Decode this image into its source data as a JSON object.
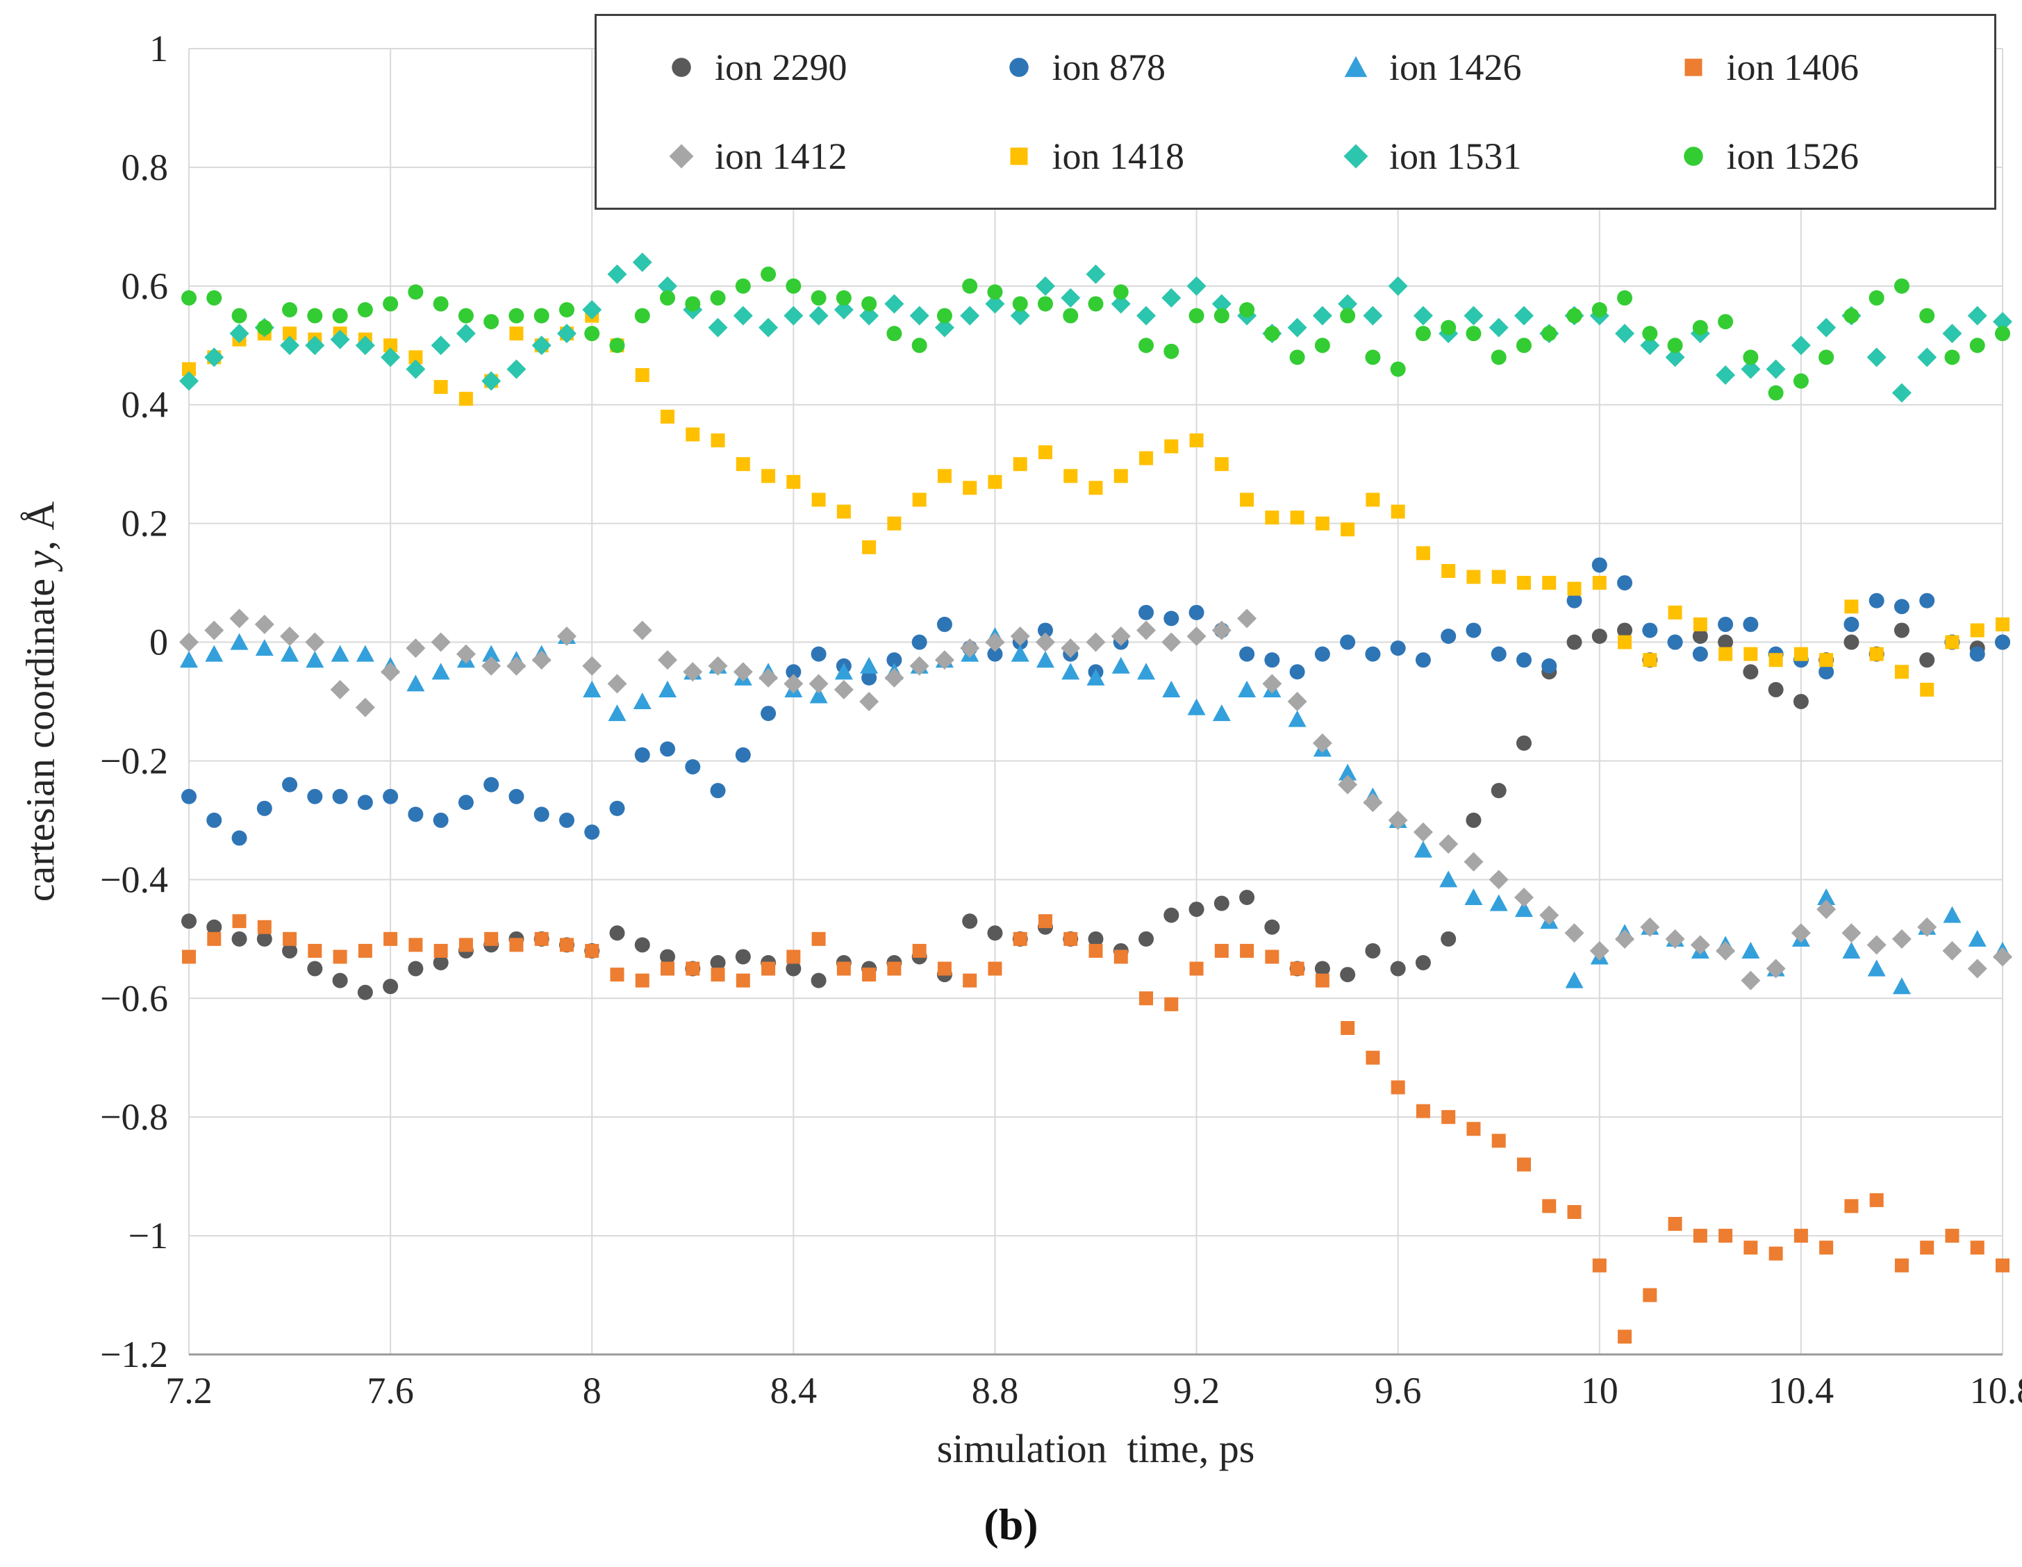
{
  "chart_data": {
    "type": "scatter",
    "title": "",
    "xlabel": "simulation  time, ps",
    "ylabel": {
      "prefix": "cartesian coordinate",
      "variable": "y",
      "suffix": ", Å"
    },
    "caption": "(b)",
    "grid": true,
    "legend_position": "top-inside",
    "x_axis": {
      "min": 7.2,
      "max": 10.8,
      "ticks": [
        7.2,
        7.6,
        8,
        8.4,
        8.8,
        9.2,
        9.6,
        10,
        10.4,
        10.8
      ],
      "tick_labels": [
        "7.2",
        "7.6",
        "8",
        "8.4",
        "8.8",
        "9.2",
        "9.6",
        "10",
        "10.4",
        "10.8"
      ]
    },
    "y_axis": {
      "min": -1.2,
      "max": 1,
      "ticks": [
        1,
        0.8,
        0.6,
        0.4,
        0.2,
        0,
        -0.2,
        -0.4,
        -0.6,
        -0.8,
        -1,
        -1.2
      ],
      "tick_labels": [
        "1",
        "0.8",
        "0.6",
        "0.4",
        "0.2",
        "0",
        "−0.2",
        "−0.4",
        "−0.6",
        "−0.8",
        "−1",
        "−1.2"
      ]
    },
    "x_start": 7.2,
    "x_step": 0.05,
    "series": [
      {
        "name": "ion 2290",
        "marker": "circle",
        "color": "#595959",
        "values": [
          -0.47,
          -0.48,
          -0.5,
          -0.5,
          -0.52,
          -0.55,
          -0.57,
          -0.59,
          -0.58,
          -0.55,
          -0.54,
          -0.52,
          -0.51,
          -0.5,
          -0.5,
          -0.51,
          -0.52,
          -0.49,
          -0.51,
          -0.53,
          -0.55,
          -0.54,
          -0.53,
          -0.54,
          -0.55,
          -0.57,
          -0.54,
          -0.55,
          -0.54,
          -0.53,
          -0.56,
          -0.47,
          -0.49,
          -0.5,
          -0.48,
          -0.5,
          -0.5,
          -0.52,
          -0.5,
          -0.46,
          -0.45,
          -0.44,
          -0.43,
          -0.48,
          -0.55,
          -0.55,
          -0.56,
          -0.52,
          -0.55,
          -0.54,
          -0.5,
          -0.3,
          -0.25,
          -0.17,
          -0.05,
          0.0,
          0.01,
          0.02,
          -0.03,
          0.0,
          0.01,
          0.0,
          -0.05,
          -0.08,
          -0.1,
          -0.03,
          0.0,
          -0.02,
          0.02,
          -0.03,
          0.0,
          -0.01,
          0.0
        ]
      },
      {
        "name": "ion 878",
        "marker": "circle",
        "color": "#2e75b6",
        "values": [
          -0.26,
          -0.3,
          -0.33,
          -0.28,
          -0.24,
          -0.26,
          -0.26,
          -0.27,
          -0.26,
          -0.29,
          -0.3,
          -0.27,
          -0.24,
          -0.26,
          -0.29,
          -0.3,
          -0.32,
          -0.28,
          -0.19,
          -0.18,
          -0.21,
          -0.25,
          -0.19,
          -0.12,
          -0.05,
          -0.02,
          -0.04,
          -0.06,
          -0.03,
          0.0,
          0.03,
          -0.01,
          -0.02,
          0.0,
          0.02,
          -0.02,
          -0.05,
          0.0,
          0.05,
          0.04,
          0.05,
          0.02,
          -0.02,
          -0.03,
          -0.05,
          -0.02,
          0.0,
          -0.02,
          -0.01,
          -0.03,
          0.01,
          0.02,
          -0.02,
          -0.03,
          -0.04,
          0.07,
          0.13,
          0.1,
          0.02,
          0.0,
          -0.02,
          0.03,
          0.03,
          -0.02,
          -0.03,
          -0.05,
          0.03,
          0.07,
          0.06,
          0.07,
          0.0,
          -0.02,
          0.0
        ]
      },
      {
        "name": "ion 1426",
        "marker": "triangle",
        "color": "#33a0dc",
        "values": [
          -0.03,
          -0.02,
          0.0,
          -0.01,
          -0.02,
          -0.03,
          -0.02,
          -0.02,
          -0.04,
          -0.07,
          -0.05,
          -0.03,
          -0.02,
          -0.03,
          -0.02,
          0.01,
          -0.08,
          -0.12,
          -0.1,
          -0.08,
          -0.05,
          -0.04,
          -0.06,
          -0.05,
          -0.08,
          -0.09,
          -0.05,
          -0.04,
          -0.05,
          -0.04,
          -0.03,
          -0.02,
          0.01,
          -0.02,
          -0.03,
          -0.05,
          -0.06,
          -0.04,
          -0.05,
          -0.08,
          -0.11,
          -0.12,
          -0.08,
          -0.08,
          -0.13,
          -0.18,
          -0.22,
          -0.26,
          -0.3,
          -0.35,
          -0.4,
          -0.43,
          -0.44,
          -0.45,
          -0.47,
          -0.57,
          -0.53,
          -0.49,
          -0.48,
          -0.5,
          -0.52,
          -0.51,
          -0.52,
          -0.55,
          -0.5,
          -0.43,
          -0.52,
          -0.55,
          -0.58,
          -0.48,
          -0.46,
          -0.5,
          -0.52
        ]
      },
      {
        "name": "ion 1406",
        "marker": "square",
        "color": "#ed7d31",
        "values": [
          -0.53,
          -0.5,
          -0.47,
          -0.48,
          -0.5,
          -0.52,
          -0.53,
          -0.52,
          -0.5,
          -0.51,
          -0.52,
          -0.51,
          -0.5,
          -0.51,
          -0.5,
          -0.51,
          -0.52,
          -0.56,
          -0.57,
          -0.55,
          -0.55,
          -0.56,
          -0.57,
          -0.55,
          -0.53,
          -0.5,
          -0.55,
          -0.56,
          -0.55,
          -0.52,
          -0.55,
          -0.57,
          -0.55,
          -0.5,
          -0.47,
          -0.5,
          -0.52,
          -0.53,
          -0.6,
          -0.61,
          -0.55,
          -0.52,
          -0.52,
          -0.53,
          -0.55,
          -0.57,
          -0.65,
          -0.7,
          -0.75,
          -0.79,
          -0.8,
          -0.82,
          -0.84,
          -0.88,
          -0.95,
          -0.96,
          -1.05,
          -1.17,
          -1.1,
          -0.98,
          -1.0,
          -1.0,
          -1.02,
          -1.03,
          -1.0,
          -1.02,
          -0.95,
          -0.94,
          -1.05,
          -1.02,
          -1.0,
          -1.02,
          -1.05
        ]
      },
      {
        "name": "ion 1412",
        "marker": "diamond",
        "color": "#a6a6a6",
        "values": [
          0.0,
          0.02,
          0.04,
          0.03,
          0.01,
          0.0,
          -0.08,
          -0.11,
          -0.05,
          -0.01,
          0.0,
          -0.02,
          -0.04,
          -0.04,
          -0.03,
          0.01,
          -0.04,
          -0.07,
          0.02,
          -0.03,
          -0.05,
          -0.04,
          -0.05,
          -0.06,
          -0.07,
          -0.07,
          -0.08,
          -0.1,
          -0.06,
          -0.04,
          -0.03,
          -0.01,
          0.0,
          0.01,
          0.0,
          -0.01,
          0.0,
          0.01,
          0.02,
          0.0,
          0.01,
          0.02,
          0.04,
          -0.07,
          -0.1,
          -0.17,
          -0.24,
          -0.27,
          -0.3,
          -0.32,
          -0.34,
          -0.37,
          -0.4,
          -0.43,
          -0.46,
          -0.49,
          -0.52,
          -0.5,
          -0.48,
          -0.5,
          -0.51,
          -0.52,
          -0.57,
          -0.55,
          -0.49,
          -0.45,
          -0.49,
          -0.51,
          -0.5,
          -0.48,
          -0.52,
          -0.55,
          -0.53
        ]
      },
      {
        "name": "ion 1418",
        "marker": "square",
        "color": "#ffc000",
        "values": [
          0.46,
          0.48,
          0.51,
          0.52,
          0.52,
          0.51,
          0.52,
          0.51,
          0.5,
          0.48,
          0.43,
          0.41,
          0.44,
          0.52,
          0.5,
          0.52,
          0.55,
          0.5,
          0.45,
          0.38,
          0.35,
          0.34,
          0.3,
          0.28,
          0.27,
          0.24,
          0.22,
          0.16,
          0.2,
          0.24,
          0.28,
          0.26,
          0.27,
          0.3,
          0.32,
          0.28,
          0.26,
          0.28,
          0.31,
          0.33,
          0.34,
          0.3,
          0.24,
          0.21,
          0.21,
          0.2,
          0.19,
          0.24,
          0.22,
          0.15,
          0.12,
          0.11,
          0.11,
          0.1,
          0.1,
          0.09,
          0.1,
          0.0,
          -0.03,
          0.05,
          0.03,
          -0.02,
          -0.02,
          -0.03,
          -0.02,
          -0.03,
          0.06,
          -0.02,
          -0.05,
          -0.08,
          0.0,
          0.02,
          0.03
        ]
      },
      {
        "name": "ion 1531",
        "marker": "diamond",
        "color": "#2cc5ad",
        "values": [
          0.44,
          0.48,
          0.52,
          0.53,
          0.5,
          0.5,
          0.51,
          0.5,
          0.48,
          0.46,
          0.5,
          0.52,
          0.44,
          0.46,
          0.5,
          0.52,
          0.56,
          0.62,
          0.64,
          0.6,
          0.56,
          0.53,
          0.55,
          0.53,
          0.55,
          0.55,
          0.56,
          0.55,
          0.57,
          0.55,
          0.53,
          0.55,
          0.57,
          0.55,
          0.6,
          0.58,
          0.62,
          0.57,
          0.55,
          0.58,
          0.6,
          0.57,
          0.55,
          0.52,
          0.53,
          0.55,
          0.57,
          0.55,
          0.6,
          0.55,
          0.52,
          0.55,
          0.53,
          0.55,
          0.52,
          0.55,
          0.55,
          0.52,
          0.5,
          0.48,
          0.52,
          0.45,
          0.46,
          0.46,
          0.5,
          0.53,
          0.55,
          0.48,
          0.42,
          0.48,
          0.52,
          0.55,
          0.54
        ]
      },
      {
        "name": "ion 1526",
        "marker": "circle",
        "color": "#33cc33",
        "values": [
          0.58,
          0.58,
          0.55,
          0.53,
          0.56,
          0.55,
          0.55,
          0.56,
          0.57,
          0.59,
          0.57,
          0.55,
          0.54,
          0.55,
          0.55,
          0.56,
          0.52,
          0.5,
          0.55,
          0.58,
          0.57,
          0.58,
          0.6,
          0.62,
          0.6,
          0.58,
          0.58,
          0.57,
          0.52,
          0.5,
          0.55,
          0.6,
          0.59,
          0.57,
          0.57,
          0.55,
          0.57,
          0.59,
          0.5,
          0.49,
          0.55,
          0.55,
          0.56,
          0.52,
          0.48,
          0.5,
          0.55,
          0.48,
          0.46,
          0.52,
          0.53,
          0.52,
          0.48,
          0.5,
          0.52,
          0.55,
          0.56,
          0.58,
          0.52,
          0.5,
          0.53,
          0.54,
          0.48,
          0.42,
          0.44,
          0.48,
          0.55,
          0.58,
          0.6,
          0.55,
          0.48,
          0.5,
          0.52
        ]
      }
    ]
  }
}
